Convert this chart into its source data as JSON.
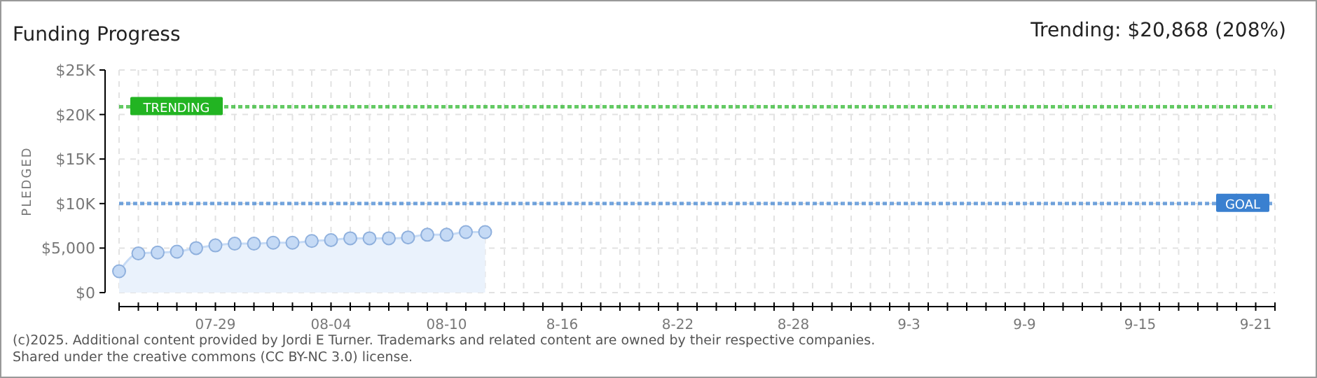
{
  "chart_data": {
    "type": "area",
    "title": "Funding Progress",
    "subtitle": "Trending: $20,868 (208%)",
    "ylabel": "PLEDGED",
    "annotations": [
      "(c)2025. Additional content provided by Jordi E Turner. Trademarks and related content are owned by their respective companies.",
      "Shared under the creative commons (CC BY-NC 3.0) license."
    ],
    "series": [
      {
        "color": "#c5daf5",
        "x": [
          "2025-07-24",
          "2025-07-25",
          "2025-07-26",
          "2025-07-27",
          "2025-07-28",
          "2025-07-29",
          "2025-07-30",
          "2025-07-31",
          "2025-08-01",
          "2025-08-02",
          "2025-08-03",
          "2025-08-04",
          "2025-08-05",
          "2025-08-06",
          "2025-08-07",
          "2025-08-08",
          "2025-08-09",
          "2025-08-10",
          "2025-08-11",
          "2025-08-12"
        ],
        "values": [
          2400,
          4400,
          4500,
          4600,
          5000,
          5300,
          5500,
          5500,
          5600,
          5600,
          5800,
          5900,
          6100,
          6100,
          6100,
          6200,
          6500,
          6500,
          6800,
          6800
        ]
      }
    ],
    "xlim": [
      "2025-07-24",
      "2025-09-22"
    ],
    "xticks": [
      {
        "value": "2025-07-24",
        "label": null
      },
      {
        "value": "2025-07-25",
        "label": null
      },
      {
        "value": "2025-07-26",
        "label": null
      },
      {
        "value": "2025-07-27",
        "label": null
      },
      {
        "value": "2025-07-28",
        "label": null
      },
      {
        "value": "2025-07-29",
        "label": "07-29"
      },
      {
        "value": "2025-07-30",
        "label": null
      },
      {
        "value": "2025-07-31",
        "label": null
      },
      {
        "value": "2025-08-01",
        "label": null
      },
      {
        "value": "2025-08-02",
        "label": null
      },
      {
        "value": "2025-08-03",
        "label": null
      },
      {
        "value": "2025-08-04",
        "label": "08-04"
      },
      {
        "value": "2025-08-05",
        "label": null
      },
      {
        "value": "2025-08-06",
        "label": null
      },
      {
        "value": "2025-08-07",
        "label": null
      },
      {
        "value": "2025-08-08",
        "label": null
      },
      {
        "value": "2025-08-09",
        "label": null
      },
      {
        "value": "2025-08-10",
        "label": "08-10"
      },
      {
        "value": "2025-08-11",
        "label": null
      },
      {
        "value": "2025-08-12",
        "label": null
      },
      {
        "value": "2025-08-13",
        "label": null
      },
      {
        "value": "2025-08-14",
        "label": null
      },
      {
        "value": "2025-08-15",
        "label": null
      },
      {
        "value": "2025-08-16",
        "label": "8-16"
      },
      {
        "value": "2025-08-17",
        "label": null
      },
      {
        "value": "2025-08-18",
        "label": null
      },
      {
        "value": "2025-08-19",
        "label": null
      },
      {
        "value": "2025-08-20",
        "label": null
      },
      {
        "value": "2025-08-21",
        "label": null
      },
      {
        "value": "2025-08-22",
        "label": "8-22"
      },
      {
        "value": "2025-08-23",
        "label": null
      },
      {
        "value": "2025-08-24",
        "label": null
      },
      {
        "value": "2025-08-25",
        "label": null
      },
      {
        "value": "2025-08-26",
        "label": null
      },
      {
        "value": "2025-08-27",
        "label": null
      },
      {
        "value": "2025-08-28",
        "label": "8-28"
      },
      {
        "value": "2025-08-29",
        "label": null
      },
      {
        "value": "2025-08-30",
        "label": null
      },
      {
        "value": "2025-08-31",
        "label": null
      },
      {
        "value": "2025-09-01",
        "label": null
      },
      {
        "value": "2025-09-02",
        "label": null
      },
      {
        "value": "2025-09-03",
        "label": "9-3"
      },
      {
        "value": "2025-09-04",
        "label": null
      },
      {
        "value": "2025-09-05",
        "label": null
      },
      {
        "value": "2025-09-06",
        "label": null
      },
      {
        "value": "2025-09-07",
        "label": null
      },
      {
        "value": "2025-09-08",
        "label": null
      },
      {
        "value": "2025-09-09",
        "label": "9-9"
      },
      {
        "value": "2025-09-10",
        "label": null
      },
      {
        "value": "2025-09-11",
        "label": null
      },
      {
        "value": "2025-09-12",
        "label": null
      },
      {
        "value": "2025-09-13",
        "label": null
      },
      {
        "value": "2025-09-14",
        "label": null
      },
      {
        "value": "2025-09-15",
        "label": "9-15"
      },
      {
        "value": "2025-09-16",
        "label": null
      },
      {
        "value": "2025-09-17",
        "label": null
      },
      {
        "value": "2025-09-18",
        "label": null
      },
      {
        "value": "2025-09-19",
        "label": null
      },
      {
        "value": "2025-09-20",
        "label": null
      },
      {
        "value": "2025-09-21",
        "label": "9-21"
      },
      {
        "value": "2025-09-22",
        "label": null
      }
    ],
    "ylim": [
      0,
      25000
    ],
    "yticks": [
      {
        "value": 0,
        "label": "$0"
      },
      {
        "value": 5000,
        "label": "$5,000"
      },
      {
        "value": 10000,
        "label": "$10K"
      },
      {
        "value": 15000,
        "label": "$15K"
      },
      {
        "value": 20000,
        "label": "$20K"
      },
      {
        "value": 25000,
        "label": "$25K"
      }
    ],
    "ref_lines": [
      {
        "axis": "y",
        "value": 20868,
        "label": "TRENDING",
        "color": "#22b422",
        "line_style": "dotted"
      },
      {
        "axis": "y",
        "value": 10000,
        "label": "GOAL",
        "color": "#3a80d0",
        "line_style": "dotted"
      }
    ],
    "grid": true,
    "marker": "circle"
  }
}
